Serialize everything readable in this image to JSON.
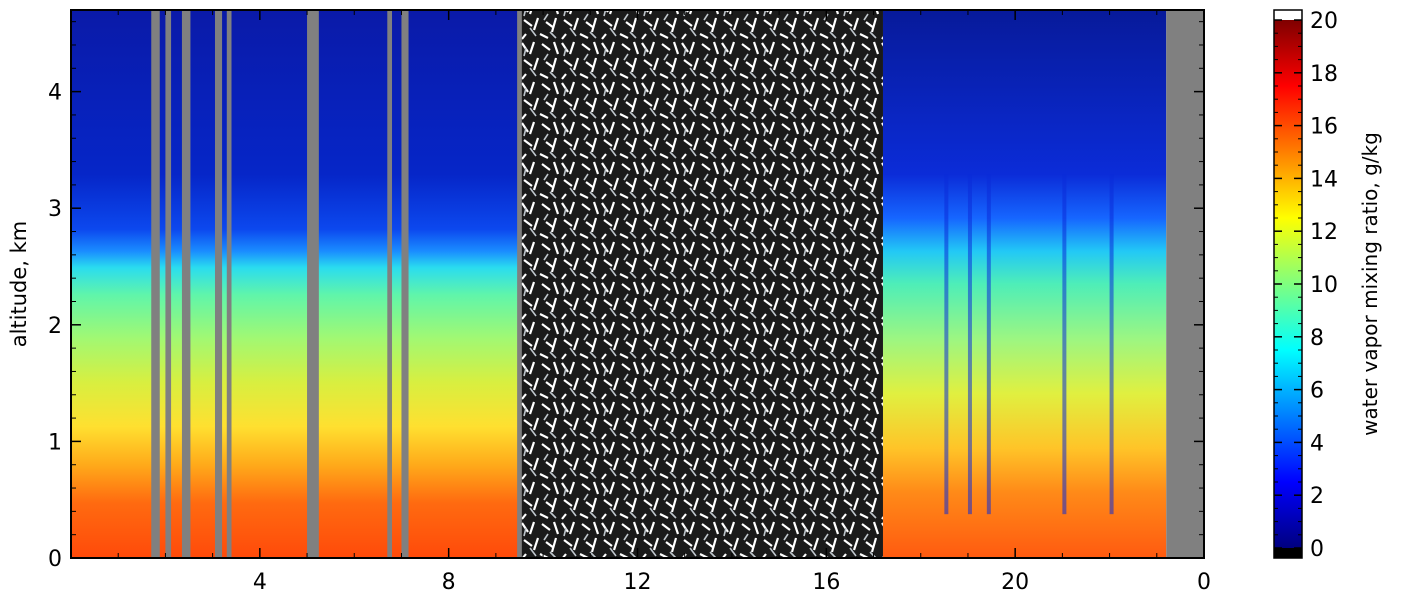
{
  "chart_data": {
    "type": "heatmap",
    "title": "",
    "xlabel": "",
    "ylabel": "altitude, km",
    "x_tick_labels": [
      "4",
      "8",
      "12",
      "16",
      "20",
      "0"
    ],
    "y_ticks": [
      0,
      1,
      2,
      3,
      4
    ],
    "ylim": [
      0,
      4.7
    ],
    "colorbar": {
      "label": "water vapor mixing ratio, g/kg",
      "range": [
        0,
        20
      ],
      "ticks": [
        0,
        2,
        4,
        6,
        8,
        10,
        12,
        14,
        16,
        18,
        20
      ],
      "colormap": "jet",
      "under_color": "#000000",
      "over_color": "#ffffff"
    },
    "segments": [
      {
        "x_start": 0.0,
        "x_end": 9.5,
        "state": "profile",
        "surface_gkg": 17.5,
        "mixed_layer_top_km": 2.55,
        "upper_gkg": 1.0
      },
      {
        "x_start": 9.5,
        "x_end": 17.2,
        "state": "noise"
      },
      {
        "x_start": 17.2,
        "x_end": 23.2,
        "state": "profile",
        "surface_gkg": 16.5,
        "mixed_layer_top_km": 2.7,
        "upper_gkg": 1.5
      },
      {
        "x_start": 23.2,
        "x_end": 24.0,
        "state": "missing"
      }
    ],
    "missing_color": "#808080"
  }
}
